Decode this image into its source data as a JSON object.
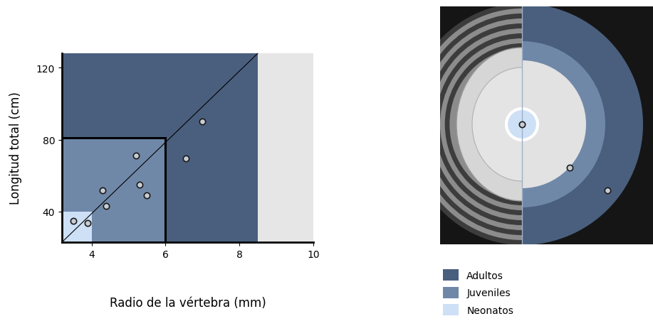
{
  "chart_data": {
    "type": "scatter",
    "x_label": "Radio de la vértebra (mm)",
    "y_label": "Longitud total (cm)",
    "x": [
      3.5,
      3.9,
      4.3,
      4.4,
      5.2,
      5.3,
      5.5,
      6.55,
      7.0
    ],
    "values": [
      35,
      33.5,
      52,
      43,
      71,
      55,
      49,
      69.5,
      90
    ],
    "xlim": [
      3.2,
      10
    ],
    "ylim": [
      23,
      128
    ],
    "xticks": [
      4,
      6,
      8,
      10
    ],
    "yticks": [
      40,
      80,
      120
    ],
    "legend": "lower right",
    "regions": [
      {
        "name": "Adultos",
        "color": "#4a5f7e",
        "x_max": 8.5,
        "y_max": 128
      },
      {
        "name": "Juveniles",
        "color": "#7088a8",
        "x_max": 6,
        "y_max": 81
      },
      {
        "name": "Neonatos",
        "color": "#cde0f5",
        "x_max": 4,
        "y_max": 40
      }
    ]
  }
}
